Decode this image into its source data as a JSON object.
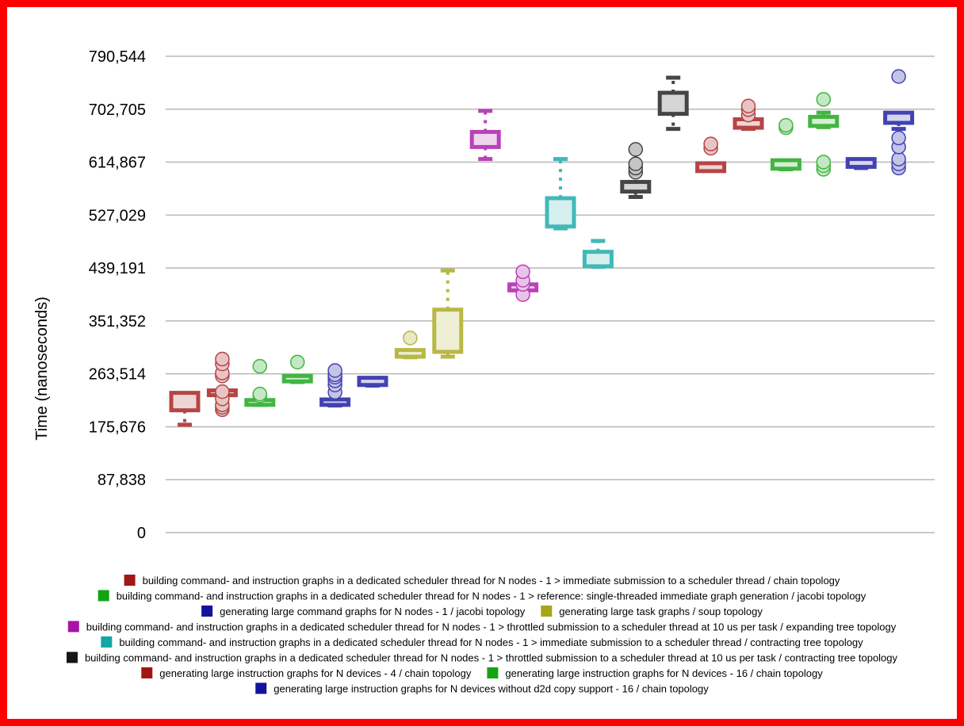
{
  "chart_data": {
    "type": "box",
    "title": "",
    "xlabel": "",
    "ylabel": "Time (nanoseconds)",
    "ylim": [
      0,
      790544
    ],
    "y_ticks": [
      "0",
      "87,838",
      "175,676",
      "263,514",
      "351,352",
      "439,191",
      "527,029",
      "614,867",
      "702,705",
      "790,544"
    ],
    "y_tick_values": [
      0,
      87838,
      175676,
      263514,
      351352,
      439191,
      527029,
      614867,
      702705,
      790544
    ],
    "grid": true,
    "legend_position": "bottom",
    "series": [
      {
        "name": "building command- and instruction graphs in a dedicated scheduler thread for N nodes - 1 > immediate submission to a scheduler thread / chain topology",
        "color": "#a31616",
        "boxes": [
          {
            "whisker_low": 179000,
            "q1": 203000,
            "median": 215000,
            "q3": 232000,
            "whisker_high": 232000,
            "outliers": []
          },
          {
            "whisker_low": 231000,
            "q1": 231000,
            "median": 233000,
            "q3": 236000,
            "whisker_high": 236000,
            "outliers": [
              204000,
              208000,
              212000,
              222000,
              234000,
              260000,
              265000,
              280000,
              288000
            ]
          }
        ]
      },
      {
        "name": "building command- and instruction graphs in a dedicated scheduler thread for N nodes - 1 > reference: single-threaded immediate graph generation / jacobi topology",
        "color": "#13a313",
        "boxes": [
          {
            "whisker_low": 212000,
            "q1": 213000,
            "median": 216000,
            "q3": 220000,
            "whisker_high": 220000,
            "outliers": [
              227000,
              230000,
              276000
            ]
          },
          {
            "whisker_low": 250000,
            "q1": 251000,
            "median": 255000,
            "q3": 260000,
            "whisker_high": 260000,
            "outliers": [
              283000
            ]
          }
        ]
      },
      {
        "name": "generating large command graphs for N nodes - 1 / jacobi topology",
        "color": "#13139e",
        "boxes": [
          {
            "whisker_low": 211000,
            "q1": 212000,
            "median": 215000,
            "q3": 221000,
            "whisker_high": 221000,
            "outliers": [
              233000,
              245000,
              252000,
              258000,
              262000,
              269000
            ]
          },
          {
            "whisker_low": 244000,
            "q1": 245000,
            "median": 249000,
            "q3": 257000,
            "whisker_high": 257000,
            "outliers": []
          }
        ]
      },
      {
        "name": "generating large task graphs / soup topology",
        "color": "#a6a616",
        "boxes": [
          {
            "whisker_low": 291000,
            "q1": 292000,
            "median": 296000,
            "q3": 303000,
            "whisker_high": 303000,
            "outliers": [
              323000
            ]
          },
          {
            "whisker_low": 292000,
            "q1": 300000,
            "median": 330000,
            "q3": 370000,
            "whisker_high": 435000,
            "outliers": []
          }
        ]
      },
      {
        "name": "building command- and instruction graphs in a dedicated scheduler thread for N nodes - 1 > throttled submission to a scheduler thread at 10 us per task / expanding tree topology",
        "color": "#a613a6",
        "boxes": [
          {
            "whisker_low": 620000,
            "q1": 640000,
            "median": 655000,
            "q3": 665000,
            "whisker_high": 700000,
            "outliers": []
          },
          {
            "whisker_low": 400000,
            "q1": 402000,
            "median": 406000,
            "q3": 412000,
            "whisker_high": 412000,
            "outliers": [
              395000,
              412000,
              419000,
              433000
            ]
          }
        ]
      },
      {
        "name": "building command- and instruction graphs in a dedicated scheduler thread for N nodes - 1 > immediate submission to a scheduler thread / contracting tree topology",
        "color": "#13a6a6",
        "boxes": [
          {
            "whisker_low": 505000,
            "q1": 508000,
            "median": 535000,
            "q3": 555000,
            "whisker_high": 620000,
            "outliers": []
          },
          {
            "whisker_low": 441000,
            "q1": 442000,
            "median": 453000,
            "q3": 466000,
            "whisker_high": 484000,
            "outliers": []
          }
        ]
      },
      {
        "name": "building command- and instruction graphs in a dedicated scheduler thread for N nodes - 1 > throttled submission to a scheduler thread at 10 us per task / contracting tree topology",
        "color": "#161616",
        "boxes": [
          {
            "whisker_low": 557000,
            "q1": 566000,
            "median": 573000,
            "q3": 582000,
            "whisker_high": 582000,
            "outliers": [
              598000,
              605000,
              612000,
              636000
            ]
          },
          {
            "whisker_low": 670000,
            "q1": 695000,
            "median": 713000,
            "q3": 730000,
            "whisker_high": 755000,
            "outliers": []
          }
        ]
      },
      {
        "name": "generating large instruction graphs for N devices - 4 / chain topology",
        "color": "#a31616",
        "boxes": [
          {
            "whisker_low": 600000,
            "q1": 600000,
            "median": 606000,
            "q3": 613000,
            "whisker_high": 613000,
            "outliers": [
              638000,
              645000
            ]
          },
          {
            "whisker_low": 670000,
            "q1": 672000,
            "median": 678000,
            "q3": 686000,
            "whisker_high": 686000,
            "outliers": [
              693000,
              702000,
              708000
            ]
          }
        ]
      },
      {
        "name": "generating large instruction graphs for N devices - 16 / chain topology",
        "color": "#13a313",
        "boxes": [
          {
            "whisker_low": 603000,
            "q1": 604000,
            "median": 609000,
            "q3": 618000,
            "whisker_high": 618000,
            "outliers": [
              672000,
              676000
            ]
          },
          {
            "whisker_low": 673000,
            "q1": 675000,
            "median": 683000,
            "q3": 690000,
            "whisker_high": 697000,
            "outliers": [
              603000,
              609000,
              615000,
              719000
            ]
          }
        ]
      },
      {
        "name": "generating large instruction graphs for N devices without d2d copy support - 16 / chain topology",
        "color": "#13139e",
        "boxes": [
          {
            "whisker_low": 605000,
            "q1": 607000,
            "median": 613000,
            "q3": 620000,
            "whisker_high": 620000,
            "outliers": []
          },
          {
            "whisker_low": 670000,
            "q1": 680000,
            "median": 689000,
            "q3": 697000,
            "whisker_high": 697000,
            "outliers": [
              605000,
              612000,
              620000,
              640000,
              655000,
              757000
            ]
          }
        ]
      }
    ],
    "legend_layout": [
      [
        0
      ],
      [
        1
      ],
      [
        2,
        3
      ],
      [
        4
      ],
      [
        5
      ],
      [
        6
      ],
      [
        7,
        8
      ],
      [
        9
      ]
    ]
  }
}
